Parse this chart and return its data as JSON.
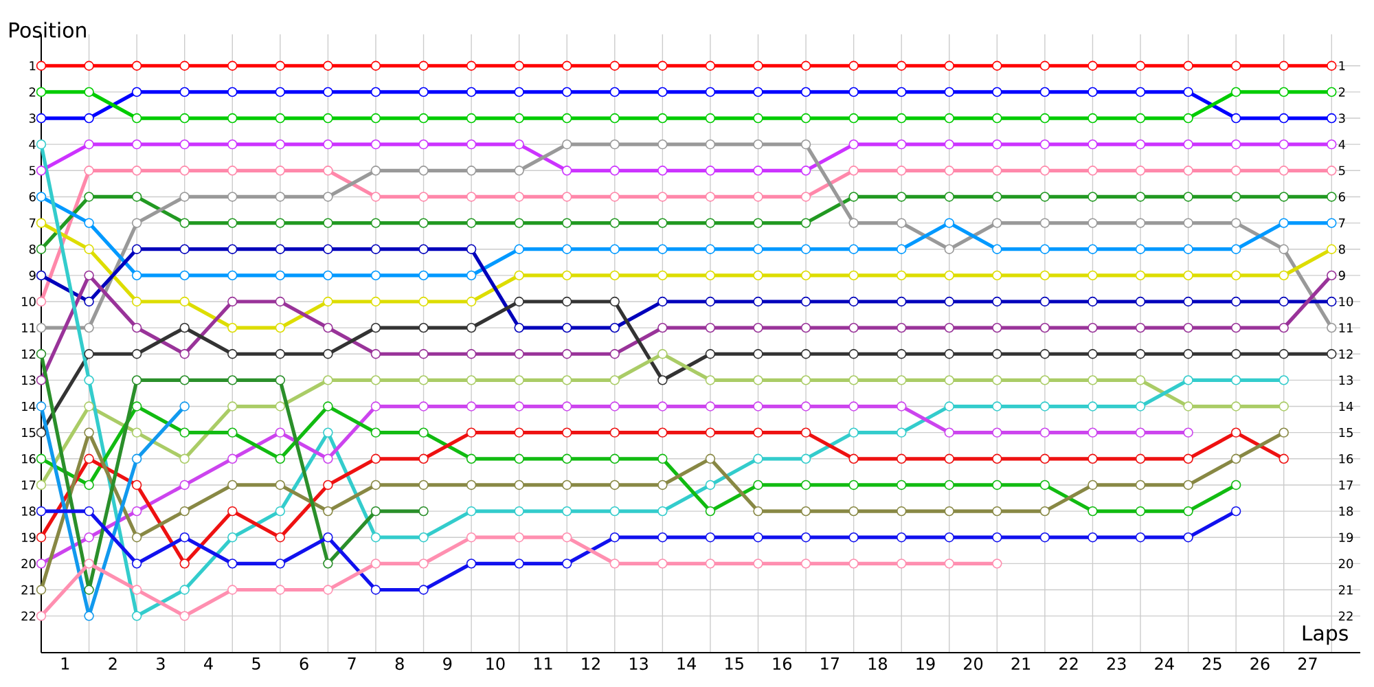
{
  "chart_data": {
    "type": "line",
    "xlabel": "Laps",
    "ylabel": "Position",
    "x": [
      0.5,
      1.5,
      2.5,
      3.5,
      4.5,
      5.5,
      6.5,
      7.5,
      8.5,
      9.5,
      10.5,
      11.5,
      12.5,
      13.5,
      14.5,
      15.5,
      16.5,
      17.5,
      18.5,
      19.5,
      20.5,
      21.5,
      22.5,
      23.5,
      24.5,
      25.5,
      26.5,
      27.5
    ],
    "xlim": [
      0.5,
      28.1
    ],
    "xticks": [
      1,
      2,
      3,
      4,
      5,
      6,
      7,
      8,
      9,
      10,
      11,
      12,
      13,
      14,
      15,
      16,
      17,
      18,
      19,
      20,
      21,
      22,
      23,
      24,
      25,
      26,
      27
    ],
    "ylim": [
      23.4,
      -0.2
    ],
    "yticks": [
      1,
      2,
      3,
      4,
      5,
      6,
      7,
      8,
      9,
      10,
      11,
      12,
      13,
      14,
      15,
      16,
      17,
      18,
      19,
      20,
      21,
      22
    ],
    "y2lim": [
      23.4,
      -0.2
    ],
    "y2ticks": [
      1,
      2,
      3,
      4,
      5,
      6,
      7,
      8,
      9,
      10,
      11,
      12,
      13,
      14,
      15,
      16,
      17,
      18,
      19,
      20,
      21,
      22
    ],
    "grid": true,
    "marker": "circle",
    "series": [
      {
        "color": "#ff0000",
        "values": [
          1,
          1,
          1,
          1,
          1,
          1,
          1,
          1,
          1,
          1,
          1,
          1,
          1,
          1,
          1,
          1,
          1,
          1,
          1,
          1,
          1,
          1,
          1,
          1,
          1,
          1,
          1,
          1
        ]
      },
      {
        "color": "#0000ff",
        "values": [
          3,
          3,
          2,
          2,
          2,
          2,
          2,
          2,
          2,
          2,
          2,
          2,
          2,
          2,
          2,
          2,
          2,
          2,
          2,
          2,
          2,
          2,
          2,
          2,
          2,
          3,
          3,
          3
        ]
      },
      {
        "color": "#00cc00",
        "values": [
          2,
          2,
          3,
          3,
          3,
          3,
          3,
          3,
          3,
          3,
          3,
          3,
          3,
          3,
          3,
          3,
          3,
          3,
          3,
          3,
          3,
          3,
          3,
          3,
          3,
          2,
          2,
          2
        ]
      },
      {
        "color": "#cc33ff",
        "values": [
          5,
          4,
          4,
          4,
          4,
          4,
          4,
          4,
          4,
          4,
          4,
          5,
          5,
          5,
          5,
          5,
          5,
          4,
          4,
          4,
          4,
          4,
          4,
          4,
          4,
          4,
          4,
          4
        ]
      },
      {
        "color": "#ff88aa",
        "values": [
          10,
          5,
          5,
          5,
          5,
          5,
          5,
          6,
          6,
          6,
          6,
          6,
          6,
          6,
          6,
          6,
          6,
          5,
          5,
          5,
          5,
          5,
          5,
          5,
          5,
          5,
          5,
          5
        ]
      },
      {
        "color": "#229922",
        "values": [
          8,
          6,
          6,
          7,
          7,
          7,
          7,
          7,
          7,
          7,
          7,
          7,
          7,
          7,
          7,
          7,
          7,
          6,
          6,
          6,
          6,
          6,
          6,
          6,
          6,
          6,
          6,
          6
        ]
      },
      {
        "color": "#999999",
        "values": [
          11,
          11,
          7,
          6,
          6,
          6,
          6,
          5,
          5,
          5,
          5,
          4,
          4,
          4,
          4,
          4,
          4,
          7,
          7,
          8,
          7,
          7,
          7,
          7,
          7,
          7,
          8,
          11
        ]
      },
      {
        "color": "#0099ff",
        "values": [
          6,
          7,
          9,
          9,
          9,
          9,
          9,
          9,
          9,
          9,
          8,
          8,
          8,
          8,
          8,
          8,
          8,
          8,
          8,
          7,
          8,
          8,
          8,
          8,
          8,
          8,
          7,
          7
        ]
      },
      {
        "color": "#dddd00",
        "values": [
          7,
          8,
          10,
          10,
          11,
          11,
          10,
          10,
          10,
          10,
          9,
          9,
          9,
          9,
          9,
          9,
          9,
          9,
          9,
          9,
          9,
          9,
          9,
          9,
          9,
          9,
          9,
          8
        ]
      },
      {
        "color": "#0000bb",
        "values": [
          9,
          10,
          8,
          8,
          8,
          8,
          8,
          8,
          8,
          8,
          11,
          11,
          11,
          10,
          10,
          10,
          10,
          10,
          10,
          10,
          10,
          10,
          10,
          10,
          10,
          10,
          10,
          10
        ]
      },
      {
        "color": "#993399",
        "values": [
          13,
          9,
          11,
          12,
          10,
          10,
          11,
          12,
          12,
          12,
          12,
          12,
          12,
          11,
          11,
          11,
          11,
          11,
          11,
          11,
          11,
          11,
          11,
          11,
          11,
          11,
          11,
          9
        ]
      },
      {
        "color": "#333333",
        "values": [
          15,
          12,
          12,
          11,
          12,
          12,
          12,
          11,
          11,
          11,
          10,
          10,
          10,
          13,
          12,
          12,
          12,
          12,
          12,
          12,
          12,
          12,
          12,
          12,
          12,
          12,
          12,
          12
        ]
      },
      {
        "color": "#aacc66",
        "values": [
          17,
          14,
          15,
          16,
          14,
          14,
          13,
          13,
          13,
          13,
          13,
          13,
          13,
          12,
          13,
          13,
          13,
          13,
          13,
          13,
          13,
          13,
          13,
          13,
          14,
          14,
          14,
          null
        ]
      },
      {
        "color": "#33cccc",
        "values": [
          4,
          13,
          22,
          21,
          19,
          18,
          15,
          19,
          19,
          18,
          18,
          18,
          18,
          18,
          17,
          16,
          16,
          15,
          15,
          14,
          14,
          14,
          14,
          14,
          13,
          13,
          13,
          null
        ]
      },
      {
        "color": "#cc44ee",
        "values": [
          20,
          19,
          18,
          17,
          16,
          15,
          16,
          14,
          14,
          14,
          14,
          14,
          14,
          14,
          14,
          14,
          14,
          14,
          14,
          15,
          15,
          15,
          15,
          15,
          15,
          null,
          null,
          null
        ]
      },
      {
        "color": "#11bb11",
        "values": [
          16,
          17,
          14,
          15,
          15,
          16,
          14,
          15,
          15,
          16,
          16,
          16,
          16,
          16,
          18,
          17,
          17,
          17,
          17,
          17,
          17,
          17,
          18,
          18,
          18,
          17,
          null,
          null
        ]
      },
      {
        "color": "#ee1111",
        "values": [
          19,
          16,
          17,
          20,
          18,
          19,
          17,
          16,
          16,
          15,
          15,
          15,
          15,
          15,
          15,
          15,
          15,
          16,
          16,
          16,
          16,
          16,
          16,
          16,
          16,
          15,
          16,
          null
        ]
      },
      {
        "color": "#888844",
        "values": [
          21,
          15,
          19,
          18,
          17,
          17,
          18,
          17,
          17,
          17,
          17,
          17,
          17,
          17,
          16,
          18,
          18,
          18,
          18,
          18,
          18,
          18,
          17,
          17,
          17,
          16,
          15,
          null
        ]
      },
      {
        "color": "#2a8f2a",
        "values": [
          12,
          21,
          13,
          13,
          13,
          13,
          20,
          18,
          18,
          null,
          null,
          null,
          null,
          null,
          null,
          null,
          null,
          null,
          null,
          null,
          null,
          null,
          null,
          null,
          null,
          null,
          null,
          null
        ]
      },
      {
        "color": "#1199ee",
        "values": [
          14,
          22,
          16,
          14,
          null,
          null,
          null,
          null,
          null,
          null,
          null,
          null,
          null,
          null,
          null,
          null,
          null,
          null,
          null,
          null,
          null,
          null,
          null,
          null,
          null,
          null,
          null,
          null
        ]
      },
      {
        "color": "#1111ee",
        "values": [
          18,
          18,
          20,
          19,
          20,
          20,
          19,
          21,
          21,
          20,
          20,
          20,
          19,
          19,
          19,
          19,
          19,
          19,
          19,
          19,
          19,
          19,
          19,
          19,
          19,
          18,
          null,
          null
        ]
      },
      {
        "color": "#ff8fb0",
        "values": [
          22,
          20,
          21,
          22,
          21,
          21,
          21,
          20,
          20,
          19,
          19,
          19,
          20,
          20,
          20,
          20,
          20,
          20,
          20,
          20,
          20,
          null,
          null,
          null,
          null,
          null,
          null,
          null
        ]
      }
    ]
  }
}
